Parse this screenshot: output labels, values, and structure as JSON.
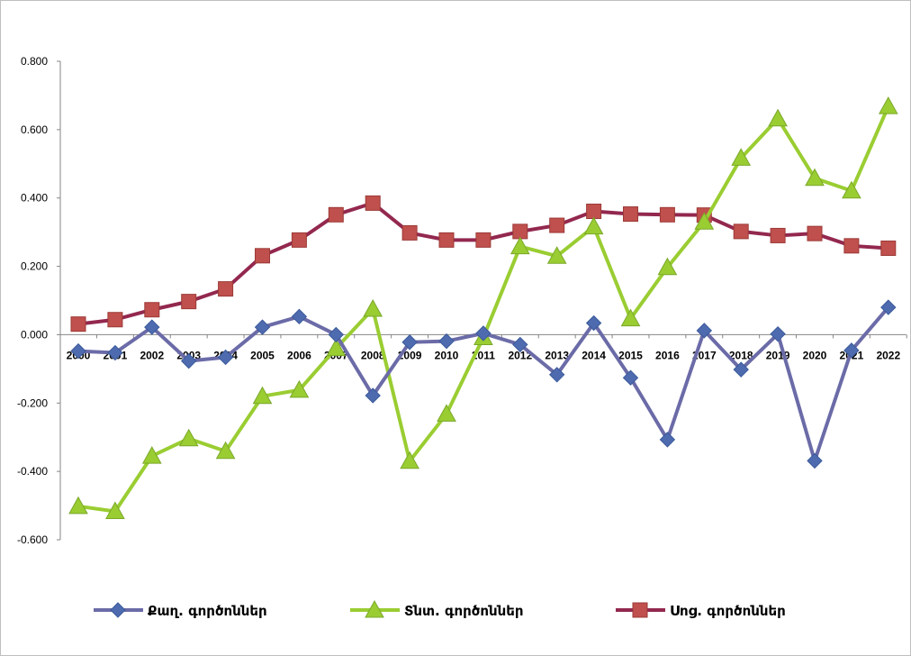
{
  "chart_data": {
    "type": "line",
    "title": "",
    "xlabel": "",
    "ylabel": "",
    "ylim": [
      -0.6,
      0.8
    ],
    "ytick_labels": [
      "0.800",
      "0.600",
      "0.400",
      "0.200",
      "0.000",
      "-0.200",
      "-0.400",
      "-0.600"
    ],
    "yticks": [
      0.8,
      0.6,
      0.4,
      0.2,
      0.0,
      -0.2,
      -0.4,
      -0.6
    ],
    "categories": [
      "2000",
      "2001",
      "2002",
      "2003",
      "2004",
      "2005",
      "2006",
      "2007",
      "2008",
      "2009",
      "2010",
      "2011",
      "2012",
      "2013",
      "2014",
      "2015",
      "2016",
      "2017",
      "2018",
      "2019",
      "2020",
      "2021",
      "2022"
    ],
    "grid": false,
    "legend_position": "bottom",
    "series": [
      {
        "name": "Քաղ. գործոններ",
        "color": "#4f6bb0",
        "line_color": "#6b6ba8",
        "marker": "diamond",
        "values": [
          -0.048,
          -0.053,
          0.022,
          -0.077,
          -0.066,
          0.022,
          0.053,
          0.0,
          -0.178,
          -0.022,
          -0.019,
          0.004,
          -0.029,
          -0.117,
          0.034,
          -0.126,
          -0.307,
          0.012,
          -0.102,
          0.002,
          -0.369,
          -0.046,
          0.08
        ]
      },
      {
        "name": "Տնտ. գործոններ",
        "color": "#9acd32",
        "marker": "triangle",
        "values": [
          -0.502,
          -0.517,
          -0.355,
          -0.304,
          -0.341,
          -0.18,
          -0.162,
          -0.04,
          0.075,
          -0.37,
          -0.232,
          -0.008,
          0.258,
          0.23,
          0.316,
          0.047,
          0.197,
          0.33,
          0.517,
          0.632,
          0.458,
          0.421,
          0.668
        ]
      },
      {
        "name": "Սոց. գործոններ",
        "color": "#c0504d",
        "line_color": "#93284f",
        "marker": "square",
        "values": [
          0.031,
          0.044,
          0.073,
          0.097,
          0.134,
          0.231,
          0.277,
          0.351,
          0.385,
          0.298,
          0.277,
          0.277,
          0.302,
          0.32,
          0.361,
          0.353,
          0.351,
          0.35,
          0.302,
          0.29,
          0.296,
          0.26,
          0.253
        ]
      }
    ]
  }
}
